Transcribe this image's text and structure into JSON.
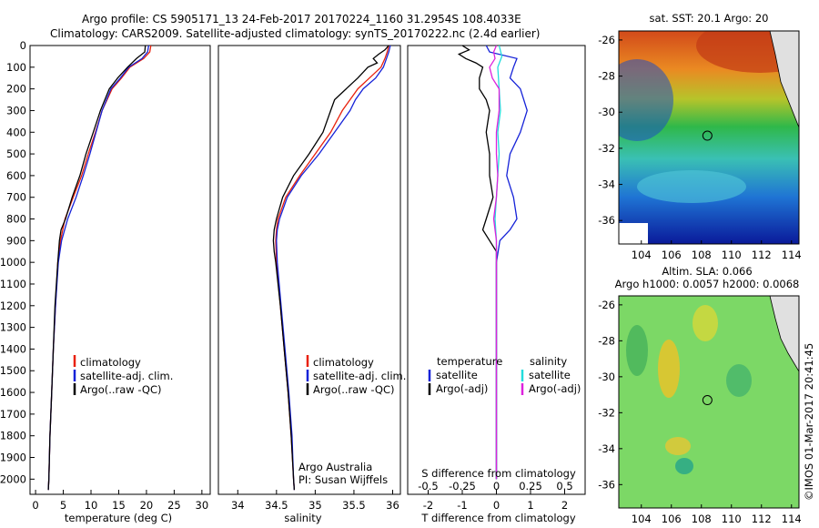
{
  "header": {
    "line1": "Argo profile: CS 5905171_13 24-Feb-2017 20170224_1160 31.2954S 108.4033E",
    "line2": "Climatology: CARS2009. Satellite-adjusted climatology: synTS_20170222.nc (2.4d earlier)"
  },
  "colors": {
    "red": "#e8200c",
    "blue": "#1522d8",
    "black": "#000000",
    "cyan": "#22dddd",
    "magenta": "#dd22dd"
  },
  "chart_data": [
    {
      "type": "line",
      "id": "temperature",
      "xlabel": "temperature (deg C)",
      "ylabel": "",
      "xlim": [
        -1,
        31.5
      ],
      "ylim": [
        2070,
        0
      ],
      "xticks": [
        0,
        5,
        10,
        15,
        20,
        25,
        30
      ],
      "yticks": [
        0,
        100,
        200,
        300,
        400,
        500,
        600,
        700,
        800,
        900,
        1000,
        1100,
        1200,
        1300,
        1400,
        1500,
        1600,
        1700,
        1800,
        1900,
        2000
      ],
      "legend": [
        "climatology",
        "satellite-adj. clim.",
        "Argo(..raw -QC)"
      ],
      "series": [
        {
          "name": "climatology",
          "color": "red",
          "depth": [
            0,
            30,
            60,
            100,
            150,
            200,
            300,
            400,
            500,
            600,
            700,
            800,
            900,
            1000,
            1200,
            1400,
            1600,
            1800,
            2000,
            2050
          ],
          "values": [
            20.8,
            20.6,
            19.5,
            17.0,
            15.5,
            13.8,
            12.0,
            10.8,
            9.5,
            8.3,
            6.8,
            5.3,
            4.5,
            4.0,
            3.6,
            3.2,
            2.9,
            2.6,
            2.4,
            2.3
          ]
        },
        {
          "name": "satellite-adj. clim.",
          "color": "blue",
          "depth": [
            0,
            30,
            60,
            100,
            150,
            200,
            300,
            400,
            500,
            600,
            700,
            800,
            900,
            1000,
            1200,
            1400,
            1600,
            1800,
            2000,
            2050
          ],
          "values": [
            20.4,
            20.2,
            19.2,
            16.8,
            15.3,
            13.6,
            12.0,
            10.9,
            9.8,
            8.6,
            7.3,
            5.8,
            4.7,
            4.1,
            3.6,
            3.2,
            2.9,
            2.6,
            2.4,
            2.3
          ]
        },
        {
          "name": "Argo(..raw -QC)",
          "color": "black",
          "depth": [
            0,
            30,
            60,
            100,
            150,
            200,
            300,
            400,
            500,
            600,
            700,
            800,
            850,
            900,
            1000,
            1200,
            1400,
            1600,
            1800,
            2000,
            2050
          ],
          "values": [
            19.8,
            19.7,
            18.2,
            16.6,
            14.8,
            13.3,
            11.7,
            10.4,
            9.1,
            8.0,
            6.6,
            5.4,
            4.6,
            4.3,
            4.0,
            3.5,
            3.2,
            2.9,
            2.6,
            2.4,
            2.3
          ]
        }
      ]
    },
    {
      "type": "line",
      "id": "salinity",
      "xlabel": "salinity",
      "xlim": [
        33.75,
        36.1
      ],
      "ylim": [
        2070,
        0
      ],
      "xticks": [
        34,
        34.5,
        35,
        35.5,
        36
      ],
      "legend": [
        "climatology",
        "satellite-adj. clim.",
        "Argo(..raw -QC)"
      ],
      "annotation": [
        "Argo Australia",
        "PI: Susan Wijffels"
      ],
      "series": [
        {
          "name": "climatology",
          "color": "red",
          "depth": [
            0,
            30,
            60,
            100,
            150,
            200,
            250,
            300,
            400,
            500,
            600,
            700,
            800,
            850,
            900,
            1000,
            1200,
            1400,
            1600,
            1800,
            2000,
            2050
          ],
          "values": [
            35.95,
            35.93,
            35.9,
            35.85,
            35.7,
            35.55,
            35.45,
            35.35,
            35.2,
            35.0,
            34.8,
            34.62,
            34.52,
            34.5,
            34.49,
            34.5,
            34.55,
            34.6,
            34.65,
            34.69,
            34.72,
            34.73
          ]
        },
        {
          "name": "satellite-adj. clim.",
          "color": "blue",
          "depth": [
            0,
            30,
            60,
            100,
            150,
            200,
            250,
            300,
            400,
            500,
            600,
            700,
            800,
            850,
            900,
            1000,
            1200,
            1400,
            1600,
            1800,
            2000,
            2050
          ],
          "values": [
            35.97,
            35.95,
            35.92,
            35.88,
            35.78,
            35.62,
            35.52,
            35.45,
            35.25,
            35.05,
            34.82,
            34.64,
            34.54,
            34.51,
            34.5,
            34.51,
            34.56,
            34.61,
            34.66,
            34.7,
            34.72,
            34.73
          ]
        },
        {
          "name": "Argo(..raw -QC)",
          "color": "black",
          "depth": [
            0,
            20,
            40,
            60,
            80,
            100,
            150,
            200,
            250,
            300,
            400,
            500,
            600,
            700,
            800,
            850,
            900,
            950,
            1000,
            1200,
            1400,
            1600,
            1800,
            2000,
            2050
          ],
          "values": [
            35.95,
            35.9,
            35.82,
            35.75,
            35.8,
            35.68,
            35.55,
            35.4,
            35.25,
            35.2,
            35.1,
            34.92,
            34.72,
            34.58,
            34.5,
            34.47,
            34.46,
            34.47,
            34.49,
            34.55,
            34.6,
            34.65,
            34.69,
            34.72,
            34.73
          ]
        }
      ]
    },
    {
      "type": "line",
      "id": "differences",
      "xlabel": "T difference from climatology",
      "xlabel_top": "S difference from climatology",
      "xlim": [
        -2.6,
        2.6
      ],
      "ylim": [
        2070,
        0
      ],
      "xticks": [
        -2,
        -1,
        0,
        1,
        2
      ],
      "xticks_s": [
        "-0.5",
        "-0.25",
        "0",
        "0.25",
        "0.5"
      ],
      "legend_t": {
        "title": "temperature",
        "items": [
          "satellite",
          "Argo(-adj)"
        ]
      },
      "legend_s": {
        "title": "salinity",
        "items": [
          "satellite",
          "Argo(-adj)"
        ]
      },
      "series": [
        {
          "name": "T satellite",
          "color": "blue",
          "depth": [
            0,
            30,
            60,
            100,
            150,
            200,
            300,
            400,
            500,
            600,
            700,
            800,
            850,
            900,
            1000,
            1200,
            1400,
            1600,
            1800,
            2000
          ],
          "values": [
            -0.3,
            -0.2,
            0.6,
            0.5,
            0.4,
            0.7,
            0.9,
            0.7,
            0.4,
            0.3,
            0.5,
            0.6,
            0.4,
            0.1,
            0.0,
            0.0,
            0.0,
            0.0,
            0.0,
            0.0
          ]
        },
        {
          "name": "T Argo(-adj)",
          "color": "black",
          "depth": [
            0,
            20,
            40,
            60,
            80,
            100,
            150,
            200,
            250,
            300,
            400,
            500,
            600,
            700,
            800,
            850,
            900,
            950,
            1000,
            1200,
            1400,
            1600,
            1800,
            2000
          ],
          "values": [
            -1.0,
            -0.8,
            -1.1,
            -0.9,
            -0.6,
            -0.4,
            -0.5,
            -0.5,
            -0.3,
            -0.2,
            -0.3,
            -0.2,
            -0.2,
            -0.1,
            -0.3,
            -0.4,
            -0.2,
            0.0,
            0.0,
            0.0,
            0.0,
            0.0,
            0.0,
            0.0
          ]
        },
        {
          "name": "S satellite",
          "color": "cyan",
          "depth": [
            0,
            50,
            100,
            200,
            300,
            400,
            500,
            600,
            700,
            800,
            900,
            1000,
            1200,
            1400,
            1600,
            1800,
            2000
          ],
          "values": [
            0.02,
            0.04,
            0.01,
            0.02,
            0.03,
            0.01,
            0.02,
            0.01,
            0.0,
            -0.01,
            0.0,
            0.0,
            0.0,
            0.0,
            0.0,
            0.0,
            0.0
          ]
        },
        {
          "name": "S Argo(-adj)",
          "color": "magenta",
          "depth": [
            0,
            30,
            60,
            100,
            150,
            200,
            300,
            400,
            500,
            600,
            700,
            800,
            900,
            1000,
            1200,
            1400,
            1600,
            1800,
            2000
          ],
          "values": [
            0.0,
            -0.02,
            -0.01,
            -0.05,
            -0.03,
            0.02,
            0.02,
            0.0,
            0.0,
            0.01,
            0.0,
            -0.02,
            0.0,
            0.0,
            0.0,
            0.0,
            0.0,
            0.0,
            0.0
          ]
        }
      ]
    },
    {
      "type": "heatmap",
      "id": "sst",
      "title": "sat. SST: 20.1  Argo: 20",
      "xticks": [
        104,
        106,
        108,
        110,
        112,
        114
      ],
      "yticks": [
        -26,
        -28,
        -30,
        -32,
        -34,
        -36
      ],
      "xlim": [
        102.5,
        114.5
      ],
      "ylim": [
        -37.3,
        -25.5
      ],
      "marker": [
        108.4,
        -31.3
      ]
    },
    {
      "type": "heatmap",
      "id": "sla",
      "title": "Altim. SLA: 0.066",
      "subtitle": "Argo h1000: 0.0057 h2000: 0.0068",
      "xticks": [
        104,
        106,
        108,
        110,
        112,
        114
      ],
      "yticks": [
        -26,
        -28,
        -30,
        -32,
        -34,
        -36
      ],
      "xlim": [
        102.5,
        114.5
      ],
      "ylim": [
        -37.3,
        -25.5
      ],
      "marker": [
        108.4,
        -31.3
      ]
    }
  ],
  "credit": "©IMOS 01-Mar-2017 20:41:45"
}
